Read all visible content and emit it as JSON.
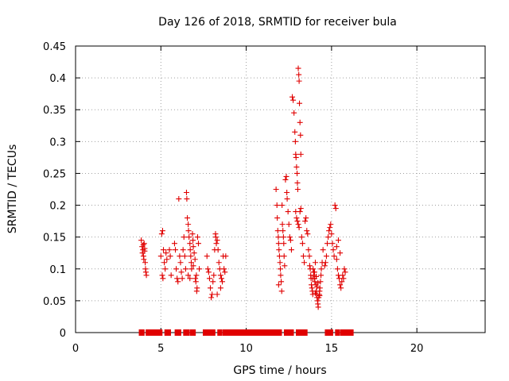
{
  "chart_data": {
    "type": "scatter",
    "title": "Day 126 of 2018, SRMTID for receiver bula",
    "xlabel": "GPS time / hours",
    "ylabel": "SRMTID / TECUs",
    "xlim": [
      0,
      24
    ],
    "ylim": [
      0,
      0.45
    ],
    "xticks": [
      0,
      5,
      10,
      15,
      20
    ],
    "xtick_labels": [
      "0",
      "5",
      "10",
      "15",
      "20"
    ],
    "yticks": [
      0,
      0.05,
      0.1,
      0.15,
      0.2,
      0.25,
      0.3,
      0.35,
      0.4,
      0.45
    ],
    "ytick_labels": [
      "0",
      "0.05",
      "0.1",
      "0.15",
      "0.2",
      "0.25",
      "0.3",
      "0.35",
      "0.4",
      "0.45"
    ],
    "grid": true,
    "marker": "plus",
    "series": [
      {
        "name": "SRMTID",
        "color": "#e00000",
        "points": [
          [
            3.85,
            0.145
          ],
          [
            3.9,
            0.135
          ],
          [
            3.92,
            0.125
          ],
          [
            3.95,
            0.13
          ],
          [
            3.98,
            0.12
          ],
          [
            4.0,
            0.115
          ],
          [
            4.02,
            0.14
          ],
          [
            4.05,
            0.128
          ],
          [
            4.08,
            0.11
          ],
          [
            4.1,
            0.1
          ],
          [
            4.12,
            0.095
          ],
          [
            4.15,
            0.09
          ],
          [
            4.05,
            0.132
          ],
          [
            3.97,
            0.138
          ],
          [
            5.05,
            0.155
          ],
          [
            5.1,
            0.16
          ],
          [
            5.15,
            0.13
          ],
          [
            5.0,
            0.12
          ],
          [
            5.2,
            0.11
          ],
          [
            5.08,
            0.09
          ],
          [
            5.12,
            0.085
          ],
          [
            5.25,
            0.1
          ],
          [
            5.3,
            0.125
          ],
          [
            5.35,
            0.115
          ],
          [
            5.5,
            0.13
          ],
          [
            5.55,
            0.12
          ],
          [
            5.6,
            0.09
          ],
          [
            5.8,
            0.14
          ],
          [
            5.85,
            0.13
          ],
          [
            5.9,
            0.1
          ],
          [
            5.95,
            0.085
          ],
          [
            6.0,
            0.08
          ],
          [
            6.05,
            0.21
          ],
          [
            6.1,
            0.12
          ],
          [
            6.15,
            0.11
          ],
          [
            6.2,
            0.095
          ],
          [
            6.25,
            0.085
          ],
          [
            6.3,
            0.13
          ],
          [
            6.35,
            0.15
          ],
          [
            6.4,
            0.12
          ],
          [
            6.45,
            0.1
          ],
          [
            6.5,
            0.22
          ],
          [
            6.52,
            0.21
          ],
          [
            6.55,
            0.18
          ],
          [
            6.6,
            0.17
          ],
          [
            6.62,
            0.16
          ],
          [
            6.65,
            0.15
          ],
          [
            6.7,
            0.14
          ],
          [
            6.72,
            0.13
          ],
          [
            6.75,
            0.12
          ],
          [
            6.78,
            0.11
          ],
          [
            6.8,
            0.1
          ],
          [
            6.85,
            0.155
          ],
          [
            6.88,
            0.145
          ],
          [
            6.9,
            0.135
          ],
          [
            6.95,
            0.125
          ],
          [
            7.0,
            0.115
          ],
          [
            7.02,
            0.085
          ],
          [
            7.05,
            0.08
          ],
          [
            7.08,
            0.09
          ],
          [
            7.1,
            0.065
          ],
          [
            7.12,
            0.07
          ],
          [
            7.15,
            0.15
          ],
          [
            7.2,
            0.14
          ],
          [
            7.25,
            0.1
          ],
          [
            6.6,
            0.09
          ],
          [
            6.7,
            0.085
          ],
          [
            6.9,
            0.105
          ],
          [
            7.7,
            0.12
          ],
          [
            7.75,
            0.1
          ],
          [
            7.8,
            0.095
          ],
          [
            7.85,
            0.085
          ],
          [
            7.9,
            0.07
          ],
          [
            7.95,
            0.055
          ],
          [
            8.0,
            0.06
          ],
          [
            8.05,
            0.08
          ],
          [
            8.1,
            0.09
          ],
          [
            8.15,
            0.13
          ],
          [
            8.2,
            0.155
          ],
          [
            8.22,
            0.15
          ],
          [
            8.25,
            0.14
          ],
          [
            8.3,
            0.145
          ],
          [
            8.35,
            0.13
          ],
          [
            8.4,
            0.11
          ],
          [
            8.45,
            0.1
          ],
          [
            8.5,
            0.09
          ],
          [
            8.55,
            0.085
          ],
          [
            8.6,
            0.08
          ],
          [
            8.3,
            0.06
          ],
          [
            8.5,
            0.07
          ],
          [
            8.65,
            0.12
          ],
          [
            8.7,
            0.1
          ],
          [
            8.75,
            0.095
          ],
          [
            8.8,
            0.12
          ],
          [
            11.75,
            0.225
          ],
          [
            11.8,
            0.2
          ],
          [
            11.82,
            0.18
          ],
          [
            11.85,
            0.16
          ],
          [
            11.88,
            0.15
          ],
          [
            11.9,
            0.14
          ],
          [
            11.92,
            0.13
          ],
          [
            11.95,
            0.12
          ],
          [
            11.98,
            0.11
          ],
          [
            12.0,
            0.1
          ],
          [
            12.02,
            0.09
          ],
          [
            12.05,
            0.08
          ],
          [
            12.08,
            0.065
          ],
          [
            12.1,
            0.2
          ],
          [
            12.12,
            0.17
          ],
          [
            12.15,
            0.16
          ],
          [
            12.18,
            0.15
          ],
          [
            12.2,
            0.14
          ],
          [
            12.22,
            0.12
          ],
          [
            12.25,
            0.105
          ],
          [
            12.3,
            0.24
          ],
          [
            12.35,
            0.245
          ],
          [
            12.38,
            0.22
          ],
          [
            12.4,
            0.21
          ],
          [
            12.45,
            0.19
          ],
          [
            12.5,
            0.17
          ],
          [
            12.55,
            0.15
          ],
          [
            12.6,
            0.145
          ],
          [
            12.65,
            0.13
          ],
          [
            11.9,
            0.075
          ],
          [
            12.7,
            0.37
          ],
          [
            12.75,
            0.365
          ],
          [
            12.8,
            0.345
          ],
          [
            12.85,
            0.315
          ],
          [
            12.88,
            0.3
          ],
          [
            12.9,
            0.28
          ],
          [
            12.92,
            0.275
          ],
          [
            12.95,
            0.26
          ],
          [
            12.98,
            0.25
          ],
          [
            13.0,
            0.235
          ],
          [
            13.02,
            0.225
          ],
          [
            13.05,
            0.415
          ],
          [
            13.08,
            0.405
          ],
          [
            13.1,
            0.395
          ],
          [
            13.12,
            0.36
          ],
          [
            13.15,
            0.33
          ],
          [
            13.18,
            0.31
          ],
          [
            13.2,
            0.28
          ],
          [
            12.9,
            0.19
          ],
          [
            12.95,
            0.18
          ],
          [
            13.0,
            0.175
          ],
          [
            13.05,
            0.17
          ],
          [
            13.1,
            0.165
          ],
          [
            13.15,
            0.19
          ],
          [
            13.2,
            0.195
          ],
          [
            13.25,
            0.15
          ],
          [
            13.3,
            0.14
          ],
          [
            13.35,
            0.12
          ],
          [
            13.4,
            0.11
          ],
          [
            13.45,
            0.175
          ],
          [
            13.5,
            0.18
          ],
          [
            13.55,
            0.16
          ],
          [
            13.6,
            0.155
          ],
          [
            13.65,
            0.13
          ],
          [
            13.7,
            0.12
          ],
          [
            13.72,
            0.105
          ],
          [
            13.75,
            0.1
          ],
          [
            13.78,
            0.09
          ],
          [
            13.8,
            0.085
          ],
          [
            13.82,
            0.075
          ],
          [
            13.85,
            0.07
          ],
          [
            13.88,
            0.065
          ],
          [
            13.9,
            0.06
          ],
          [
            13.92,
            0.1
          ],
          [
            13.95,
            0.095
          ],
          [
            13.98,
            0.09
          ],
          [
            14.0,
            0.085
          ],
          [
            14.02,
            0.08
          ],
          [
            14.05,
            0.11
          ],
          [
            14.08,
            0.075
          ],
          [
            14.1,
            0.065
          ],
          [
            14.12,
            0.06
          ],
          [
            14.15,
            0.055
          ],
          [
            14.18,
            0.05
          ],
          [
            14.2,
            0.045
          ],
          [
            14.22,
            0.04
          ],
          [
            14.25,
            0.055
          ],
          [
            14.28,
            0.06
          ],
          [
            14.3,
            0.065
          ],
          [
            14.32,
            0.07
          ],
          [
            14.35,
            0.08
          ],
          [
            14.38,
            0.09
          ],
          [
            14.4,
            0.1
          ],
          [
            14.45,
            0.11
          ],
          [
            14.5,
            0.13
          ],
          [
            13.9,
            0.085
          ],
          [
            14.0,
            0.095
          ],
          [
            14.1,
            0.088
          ],
          [
            14.2,
            0.078
          ],
          [
            14.3,
            0.058
          ],
          [
            14.15,
            0.072
          ],
          [
            14.05,
            0.062
          ],
          [
            14.6,
            0.105
          ],
          [
            14.65,
            0.11
          ],
          [
            14.7,
            0.12
          ],
          [
            14.75,
            0.14
          ],
          [
            14.8,
            0.15
          ],
          [
            14.85,
            0.16
          ],
          [
            14.9,
            0.165
          ],
          [
            14.95,
            0.17
          ],
          [
            15.0,
            0.155
          ],
          [
            15.05,
            0.14
          ],
          [
            15.1,
            0.13
          ],
          [
            15.15,
            0.12
          ],
          [
            15.2,
            0.2
          ],
          [
            15.25,
            0.195
          ],
          [
            15.3,
            0.115
          ],
          [
            15.35,
            0.1
          ],
          [
            15.4,
            0.09
          ],
          [
            15.45,
            0.085
          ],
          [
            15.5,
            0.075
          ],
          [
            15.55,
            0.07
          ],
          [
            15.6,
            0.08
          ],
          [
            15.65,
            0.09
          ],
          [
            15.7,
            0.085
          ],
          [
            15.75,
            0.1
          ],
          [
            15.8,
            0.095
          ],
          [
            15.4,
            0.145
          ],
          [
            15.5,
            0.125
          ],
          [
            15.3,
            0.135
          ]
        ]
      },
      {
        "name": "zero values",
        "color": "#e00000",
        "ranges": [
          [
            3.8,
            3.95
          ],
          [
            4.2,
            5.0
          ],
          [
            5.3,
            5.5
          ],
          [
            5.9,
            6.1
          ],
          [
            6.4,
            6.6
          ],
          [
            6.8,
            6.95
          ],
          [
            7.55,
            8.1
          ],
          [
            8.4,
            8.5
          ],
          [
            8.7,
            12.0
          ],
          [
            12.3,
            12.7
          ],
          [
            13.0,
            13.5
          ],
          [
            14.7,
            15.0
          ],
          [
            15.3,
            15.4
          ],
          [
            15.6,
            16.2
          ]
        ]
      }
    ]
  }
}
